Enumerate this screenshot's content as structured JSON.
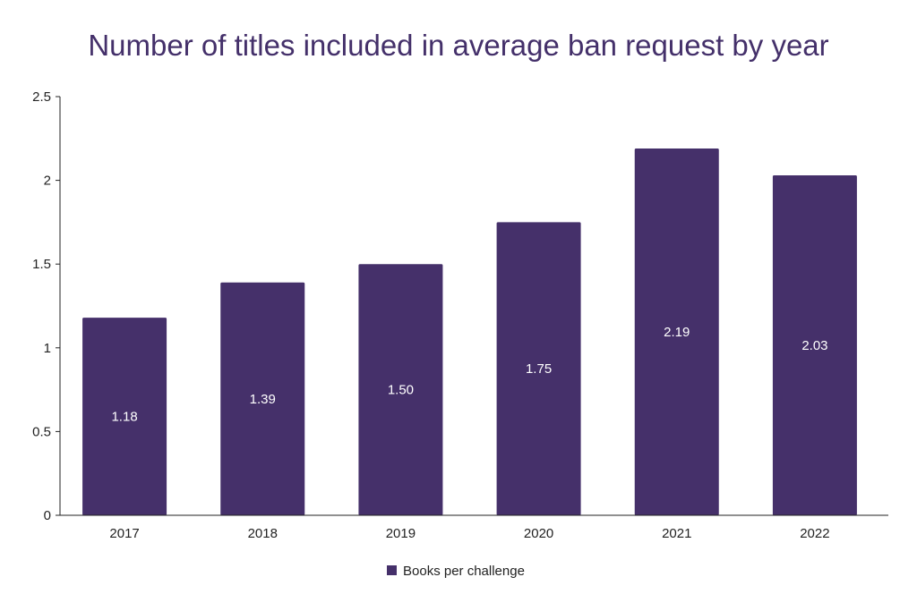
{
  "chart_data": {
    "type": "bar",
    "title": "Number of titles included in average ban request by year",
    "xlabel": "",
    "ylabel": "",
    "categories": [
      "2017",
      "2018",
      "2019",
      "2020",
      "2021",
      "2022"
    ],
    "series": [
      {
        "name": "Books per challenge",
        "values": [
          1.18,
          1.39,
          1.5,
          1.75,
          2.19,
          2.03
        ],
        "labels": [
          "1.18",
          "1.39",
          "1.50",
          "1.75",
          "2.19",
          "2.03"
        ],
        "color": "#45306a"
      }
    ],
    "ylim": [
      0,
      2.5
    ],
    "yticks": [
      0,
      0.5,
      1,
      1.5,
      2,
      2.5
    ],
    "ytick_labels": [
      "0",
      "0.5",
      "1",
      "1.5",
      "2",
      "2.5"
    ],
    "grid": false,
    "legend_position": "bottom-center",
    "colors": {
      "bar": "#45306a",
      "title": "#44306a",
      "axis": "#222222",
      "data_label": "#ffffff"
    }
  }
}
